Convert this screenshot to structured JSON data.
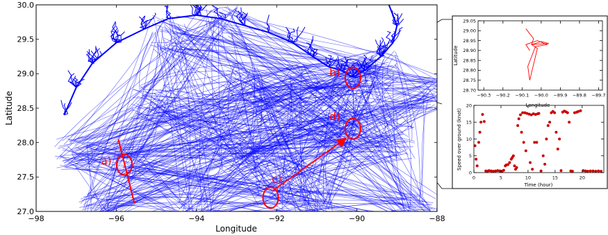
{
  "chart_data": [
    {
      "type": "line",
      "title": "",
      "xlabel": "Longitude",
      "ylabel": "Latitude",
      "xlim": [
        -98,
        -88
      ],
      "ylim": [
        27.0,
        30.0
      ],
      "x_ticks": [
        -98,
        -96,
        -94,
        -92,
        -90,
        -88
      ],
      "y_ticks": [
        27.0,
        27.5,
        28.0,
        28.5,
        29.0,
        29.5,
        30.0
      ],
      "x_tick_labels": [
        "−98",
        "−96",
        "−94",
        "−92",
        "−90",
        "−88"
      ],
      "y_tick_labels": [
        "27.0",
        "27.5",
        "28.0",
        "28.5",
        "29.0",
        "29.5",
        "30.0"
      ],
      "grid": false,
      "series_color": "#0000ff",
      "annotation_color": "#ff0000",
      "coastline": [
        [
          -97.3,
          28.4
        ],
        [
          -97.0,
          28.8
        ],
        [
          -96.6,
          29.15
        ],
        [
          -96.0,
          29.45
        ],
        [
          -95.3,
          29.65
        ],
        [
          -94.7,
          29.8
        ],
        [
          -94.0,
          29.85
        ],
        [
          -93.4,
          29.8
        ],
        [
          -92.8,
          29.7
        ],
        [
          -92.2,
          29.6
        ],
        [
          -91.6,
          29.45
        ],
        [
          -91.1,
          29.25
        ],
        [
          -90.7,
          29.1
        ],
        [
          -90.4,
          29.05
        ],
        [
          -90.1,
          28.95
        ],
        [
          -89.8,
          29.05
        ],
        [
          -89.4,
          29.25
        ],
        [
          -89.1,
          29.45
        ],
        [
          -89.0,
          29.7
        ],
        [
          -89.2,
          30.0
        ]
      ],
      "markers": [
        {
          "label": "a)",
          "x": -95.8,
          "y": 27.68,
          "label_x": -96.25,
          "label_y": 27.68
        },
        {
          "label": "b)",
          "x": -90.1,
          "y": 28.94,
          "label_x": -90.55,
          "label_y": 28.97
        },
        {
          "label": "c)",
          "x": -92.15,
          "y": 27.2,
          "label_x": -92.0,
          "label_y": 27.42
        },
        {
          "label": "d)",
          "x": -90.1,
          "y": 28.2,
          "label_x": -90.55,
          "label_y": 28.33
        }
      ],
      "line_a": {
        "from": [
          -95.95,
          28.05
        ],
        "to": [
          -95.55,
          27.12
        ]
      },
      "arrow_c_to_d": {
        "from": [
          -92.1,
          27.3
        ],
        "to": [
          -90.3,
          28.05
        ]
      }
    },
    {
      "type": "line",
      "title": "",
      "xlabel": "Longitude",
      "ylabel": "Latitude",
      "xlim": [
        -90.33,
        -89.68
      ],
      "ylim": [
        28.7,
        29.05
      ],
      "x_ticks": [
        -90.3,
        -90.2,
        -90.1,
        -90.0,
        -89.9,
        -89.8,
        -89.7
      ],
      "y_ticks": [
        28.7,
        28.75,
        28.8,
        28.85,
        28.9,
        28.95,
        29.0,
        29.05
      ],
      "x_tick_labels": [
        "−90.3",
        "−90.2",
        "−90.1",
        "−90.0",
        "−89.9",
        "−89.8",
        "−89.7"
      ],
      "y_tick_labels": [
        "28.70",
        "28.75",
        "28.80",
        "28.85",
        "28.90",
        "28.95",
        "29.00",
        "29.05"
      ],
      "series_color": "#ff0000",
      "points": [
        [
          -90.08,
          29.01
        ],
        [
          -90.04,
          28.96
        ],
        [
          -90.05,
          28.93
        ],
        [
          -90.0,
          28.945
        ],
        [
          -89.96,
          28.935
        ],
        [
          -90.05,
          28.93
        ],
        [
          -90.02,
          28.91
        ],
        [
          -90.06,
          28.75
        ],
        [
          -90.07,
          28.82
        ],
        [
          -90.03,
          28.92
        ],
        [
          -89.97,
          28.93
        ],
        [
          -90.02,
          28.95
        ],
        [
          -90.08,
          28.93
        ],
        [
          -90.06,
          28.9
        ]
      ]
    },
    {
      "type": "scatter",
      "title": "",
      "xlabel": "Time (hour)",
      "ylabel": "Speed over ground (knot)",
      "xlim": [
        0,
        24
      ],
      "ylim": [
        0,
        20
      ],
      "x_ticks": [
        0,
        5,
        10,
        15,
        20
      ],
      "y_ticks": [
        0,
        5,
        10,
        15,
        20
      ],
      "x_tick_labels": [
        "0",
        "5",
        "10",
        "15",
        "20"
      ],
      "y_tick_labels": [
        "0",
        "5",
        "10",
        "15",
        "20"
      ],
      "series_color": "#cc0000",
      "points": [
        [
          0.2,
          8
        ],
        [
          0.4,
          4
        ],
        [
          0.6,
          2
        ],
        [
          0.9,
          9
        ],
        [
          1.1,
          12
        ],
        [
          1.3,
          15
        ],
        [
          1.6,
          17.3
        ],
        [
          1.9,
          15.2
        ],
        [
          2.2,
          0.5
        ],
        [
          2.5,
          0.4
        ],
        [
          2.8,
          0.6
        ],
        [
          3.2,
          0.5
        ],
        [
          3.6,
          0.4
        ],
        [
          4.0,
          0.5
        ],
        [
          4.4,
          0.6
        ],
        [
          4.8,
          0.5
        ],
        [
          5.2,
          0.4
        ],
        [
          5.5,
          0.7
        ],
        [
          5.8,
          2
        ],
        [
          6.0,
          2.3
        ],
        [
          6.3,
          2.4
        ],
        [
          6.6,
          3
        ],
        [
          6.9,
          4
        ],
        [
          7.1,
          4.5
        ],
        [
          7.3,
          5
        ],
        [
          7.5,
          2
        ],
        [
          7.7,
          1
        ],
        [
          7.9,
          1.5
        ],
        [
          8.1,
          14
        ],
        [
          8.3,
          16
        ],
        [
          8.6,
          17.2
        ],
        [
          9.0,
          17.8
        ],
        [
          9.4,
          17.8
        ],
        [
          9.8,
          17.6
        ],
        [
          10.2,
          17.4
        ],
        [
          10.6,
          17.2
        ],
        [
          11.0,
          17.5
        ],
        [
          11.4,
          17.3
        ],
        [
          11.8,
          17.5
        ],
        [
          12.0,
          17.6
        ],
        [
          8.8,
          12
        ],
        [
          9.2,
          9
        ],
        [
          9.6,
          6.5
        ],
        [
          10.4,
          3
        ],
        [
          10.8,
          1
        ],
        [
          11.2,
          9
        ],
        [
          11.6,
          9
        ],
        [
          12.4,
          0.5
        ],
        [
          12.8,
          5
        ],
        [
          13.1,
          2.5
        ],
        [
          13.4,
          10
        ],
        [
          13.7,
          14
        ],
        [
          14.0,
          15
        ],
        [
          14.3,
          17.8
        ],
        [
          14.6,
          18.2
        ],
        [
          14.9,
          17.8
        ],
        [
          15.2,
          12
        ],
        [
          15.5,
          7
        ],
        [
          15.8,
          10
        ],
        [
          16.1,
          0.6
        ],
        [
          16.4,
          18
        ],
        [
          16.7,
          18.3
        ],
        [
          17.0,
          18.1
        ],
        [
          17.3,
          17.8
        ],
        [
          17.6,
          15
        ],
        [
          17.9,
          0.5
        ],
        [
          18.2,
          0.4
        ],
        [
          18.6,
          17.8
        ],
        [
          19.0,
          18
        ],
        [
          19.3,
          18.2
        ],
        [
          19.7,
          18.4
        ],
        [
          20.2,
          0.6
        ],
        [
          20.6,
          0.5
        ],
        [
          21.0,
          0.4
        ],
        [
          21.5,
          0.5
        ],
        [
          22.0,
          0.5
        ],
        [
          22.5,
          0.4
        ],
        [
          23.0,
          0.5
        ],
        [
          23.5,
          0.4
        ]
      ]
    }
  ]
}
